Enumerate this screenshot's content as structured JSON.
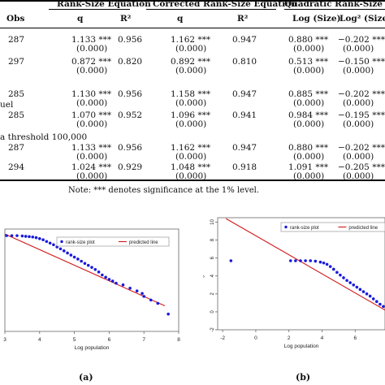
{
  "table": {
    "group_headers": [
      "Rank-Size Equation",
      "Corrected Rank-Size Equation",
      "Quadratic Rank-Size E"
    ],
    "col_headers": [
      "Obs",
      "q",
      "R²",
      "q",
      "R²",
      "Log (Size)",
      "Log² (Size)"
    ],
    "group_labels": [
      "uel",
      "a threshold 100,000"
    ],
    "rows": [
      {
        "obs": "287",
        "q1": "1.133 ***",
        "se1": "(0.000)",
        "r1": "0.956",
        "q2": "1.162 ***",
        "se2": "(0.000)",
        "r2": "0.947",
        "ls": "0.880 ***",
        "se3": "(0.000)",
        "ls2": "−0.202 ***",
        "se4": "(0.000)"
      },
      {
        "obs": "297",
        "q1": "0.872 ***",
        "se1": "(0.000)",
        "r1": "0.820",
        "q2": "0.892 ***",
        "se2": "(0.000)",
        "r2": "0.810",
        "ls": "0.513 ***",
        "se3": "(0.000)",
        "ls2": "−0.150 ***",
        "se4": "(0.000)"
      },
      {
        "obs": "285",
        "q1": "1.130 ***",
        "se1": "(0.000)",
        "r1": "0.956",
        "q2": "1.158 ***",
        "se2": "(0.000)",
        "r2": "0.947",
        "ls": "0.885 ***",
        "se3": "(0.000)",
        "ls2": "−0.202 ***",
        "se4": "(0.000)"
      },
      {
        "obs": "285",
        "q1": "1.070 ***",
        "se1": "(0.000)",
        "r1": "0.952",
        "q2": "1.096 ***",
        "se2": "(0.000)",
        "r2": "0.941",
        "ls": "0.984 ***",
        "se3": "(0.000)",
        "ls2": "−0.195 ***",
        "se4": "(0.000)"
      },
      {
        "obs": "287",
        "q1": "1.133 ***",
        "se1": "(0.000)",
        "r1": "0.956",
        "q2": "1.162 ***",
        "se2": "(0.000)",
        "r2": "0.947",
        "ls": "0.880 ***",
        "se3": "(0.000)",
        "ls2": "−0.202 ***",
        "se4": "(0.000)"
      },
      {
        "obs": "294",
        "q1": "1.024 ***",
        "se1": "(0.000)",
        "r1": "0.929",
        "q2": "1.048 ***",
        "se2": "(0.000)",
        "r2": "0.918",
        "ls": "1.091 ***",
        "se3": "(0.000)",
        "ls2": "−0.205 ***",
        "se4": "(0.000)"
      }
    ],
    "note": "Note: *** denotes significance at the 1% level."
  },
  "panels": {
    "a_label": "(a)",
    "b_label": "(b)"
  },
  "chart_data": [
    {
      "type": "scatter",
      "xlabel": "Log population",
      "xlim": [
        3,
        8
      ],
      "ylim": [
        0,
        6.2
      ],
      "xticks": [
        "3",
        "4",
        "5",
        "6",
        "7",
        "8"
      ],
      "legend": [
        "rank-size plot",
        "predicted line"
      ],
      "colors": {
        "points": "#1a1adc",
        "line": "#d01818"
      },
      "line": [
        [
          3.0,
          5.9
        ],
        [
          7.6,
          1.55
        ]
      ],
      "series": [
        {
          "points": [
            [
              3.05,
              5.8
            ],
            [
              3.2,
              5.8
            ],
            [
              3.35,
              5.8
            ],
            [
              3.5,
              5.78
            ],
            [
              3.6,
              5.76
            ],
            [
              3.7,
              5.74
            ],
            [
              3.8,
              5.72
            ],
            [
              3.9,
              5.68
            ],
            [
              4.0,
              5.62
            ],
            [
              4.1,
              5.55
            ],
            [
              4.2,
              5.45
            ],
            [
              4.3,
              5.35
            ],
            [
              4.4,
              5.25
            ],
            [
              4.5,
              5.12
            ],
            [
              4.6,
              5.0
            ],
            [
              4.7,
              4.88
            ],
            [
              4.8,
              4.75
            ],
            [
              4.9,
              4.62
            ],
            [
              5.0,
              4.5
            ],
            [
              5.1,
              4.38
            ],
            [
              5.2,
              4.25
            ],
            [
              5.3,
              4.12
            ],
            [
              5.4,
              4.0
            ],
            [
              5.5,
              3.88
            ],
            [
              5.6,
              3.75
            ],
            [
              5.7,
              3.6
            ],
            [
              5.8,
              3.42
            ],
            [
              5.9,
              3.28
            ],
            [
              6.0,
              3.15
            ],
            [
              6.1,
              3.05
            ],
            [
              6.2,
              2.92
            ],
            [
              6.4,
              2.82
            ],
            [
              6.6,
              2.62
            ],
            [
              6.8,
              2.45
            ],
            [
              6.95,
              2.3
            ],
            [
              7.0,
              2.12
            ],
            [
              7.2,
              1.9
            ],
            [
              7.4,
              1.7
            ],
            [
              7.7,
              1.05
            ]
          ]
        }
      ]
    },
    {
      "type": "scatter",
      "xlabel": "Log population",
      "ylabel": "Log rank",
      "xlim": [
        -2.3,
        7.8
      ],
      "ylim": [
        -2,
        10.5
      ],
      "xticks": [
        "-2",
        "0",
        "2",
        "4",
        "6"
      ],
      "yticks": [
        "-2",
        "0",
        "2",
        "4",
        "6",
        "8",
        "10"
      ],
      "legend": [
        "rank-size plot",
        "predicted line"
      ],
      "colors": {
        "points": "#1a1adc",
        "line": "#d01818"
      },
      "line": [
        [
          -1.8,
          10.4
        ],
        [
          7.8,
          0.2
        ]
      ],
      "series": [
        {
          "points": [
            [
              -1.5,
              5.7
            ],
            [
              2.1,
              5.7
            ],
            [
              2.4,
              5.7
            ],
            [
              2.7,
              5.7
            ],
            [
              3.0,
              5.7
            ],
            [
              3.3,
              5.7
            ],
            [
              3.6,
              5.65
            ],
            [
              3.9,
              5.55
            ],
            [
              4.1,
              5.45
            ],
            [
              4.3,
              5.3
            ],
            [
              4.5,
              5.05
            ],
            [
              4.7,
              4.75
            ],
            [
              4.9,
              4.4
            ],
            [
              5.1,
              4.1
            ],
            [
              5.3,
              3.8
            ],
            [
              5.5,
              3.5
            ],
            [
              5.7,
              3.25
            ],
            [
              5.9,
              3.0
            ],
            [
              6.1,
              2.75
            ],
            [
              6.3,
              2.5
            ],
            [
              6.5,
              2.25
            ],
            [
              6.7,
              2.0
            ],
            [
              6.9,
              1.75
            ],
            [
              7.1,
              1.45
            ],
            [
              7.3,
              1.15
            ],
            [
              7.5,
              0.85
            ],
            [
              7.7,
              0.6
            ]
          ]
        }
      ]
    }
  ]
}
